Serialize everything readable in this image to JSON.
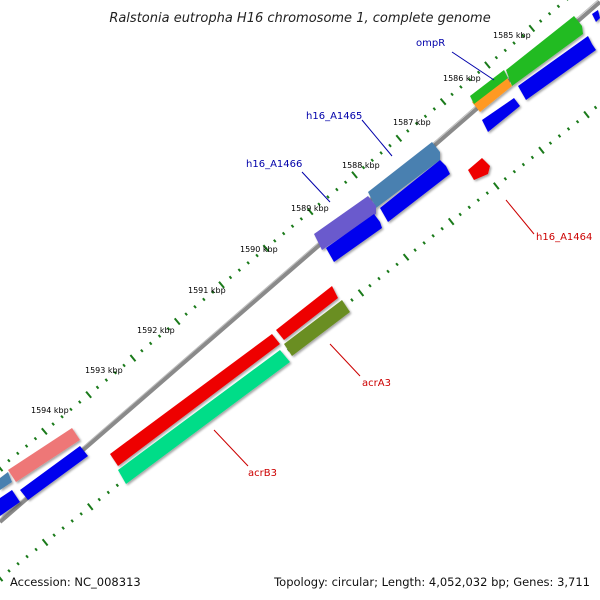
{
  "title": "Ralstonia eutropha H16 chromosome 1, complete genome",
  "footer": {
    "accession": "Accession: NC_008313",
    "summary": "Topology: circular; Length: 4,052,032 bp; Genes: 3,711"
  },
  "ticks": [
    "1585 kbp",
    "1586 kbp",
    "1587 kbp",
    "1588 kbp",
    "1589 kbp",
    "1590 kbp",
    "1591 kbp",
    "1592 kbp",
    "1593 kbp",
    "1594 kbp"
  ],
  "gene_labels": [
    {
      "text": "ompR",
      "color": "#0000aa"
    },
    {
      "text": "h16_A1465",
      "color": "#0000aa"
    },
    {
      "text": "h16_A1466",
      "color": "#0000aa"
    },
    {
      "text": "h16_A1464",
      "color": "#cc0000"
    },
    {
      "text": "acrA3",
      "color": "#cc0000"
    },
    {
      "text": "acrB3",
      "color": "#cc0000"
    }
  ],
  "colors": {
    "backbone": "#8a8a8a",
    "tick_mark": "#1a7a1a",
    "cds_forward": "#0000ee",
    "cds_reverse": "#ee0000",
    "gene_green": "#22bb22",
    "gene_orange": "#ff9922",
    "gene_steelblue": "#4a80b0",
    "gene_slateblue": "#6a5acd",
    "gene_red": "#ee0000",
    "gene_olive": "#6b8e23",
    "gene_springgreen": "#00dd88",
    "gene_pink": "#ee7777"
  }
}
